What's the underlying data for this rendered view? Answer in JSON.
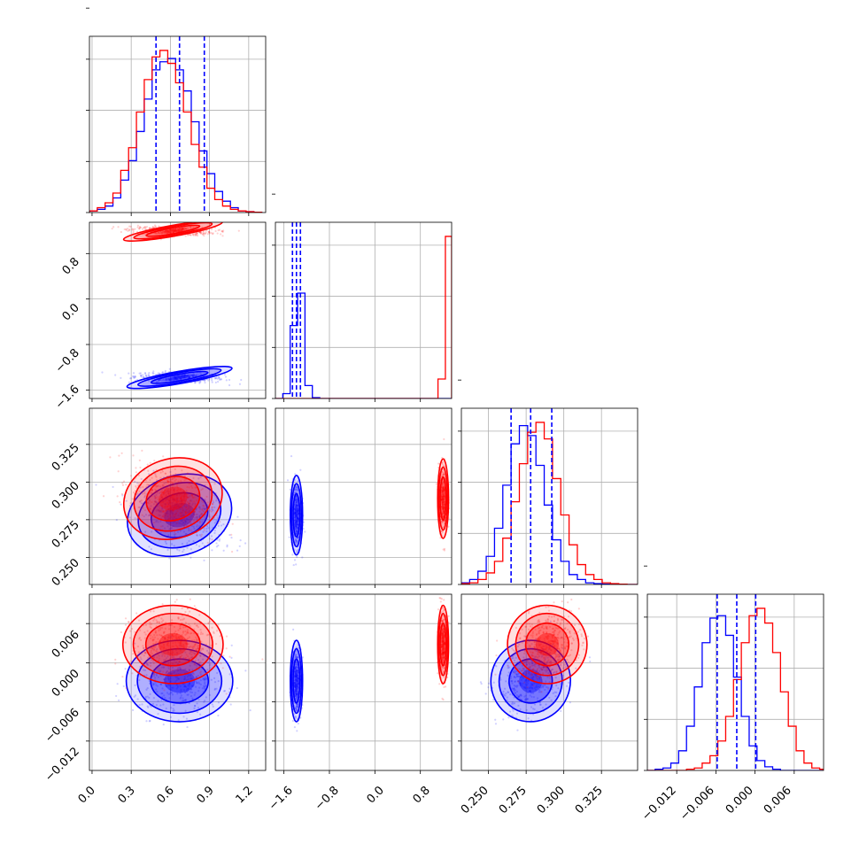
{
  "chart_data": {
    "type": "corner-plot",
    "title": "",
    "grid": true,
    "colors": {
      "series_a": "#0000ff",
      "series_b": "#ff0000",
      "quantile_line": "#0000ff"
    },
    "series": [
      {
        "name": "",
        "color": "#0000ff"
      },
      {
        "name": "",
        "color": "#ff0000"
      }
    ],
    "parameters": [
      {
        "label": "",
        "range": [
          -0.02,
          1.33
        ],
        "ticks": [
          0.0,
          0.3,
          0.6,
          0.9,
          1.2
        ],
        "tick_labels": [
          "0.0",
          "0.3",
          "0.6",
          "0.9",
          "1.2"
        ]
      },
      {
        "label": "",
        "range": [
          -1.75,
          1.35
        ],
        "ticks": [
          -1.6,
          -0.8,
          0.0,
          0.8
        ],
        "tick_labels": [
          "−1.6",
          "−0.8",
          "0.0",
          "0.8"
        ]
      },
      {
        "label": "",
        "range": [
          0.232,
          0.349
        ],
        "ticks": [
          0.25,
          0.275,
          0.3,
          0.325
        ],
        "tick_labels": [
          "0.250",
          "0.275",
          "0.300",
          "0.325"
        ]
      },
      {
        "label": "",
        "range": [
          -0.0165,
          0.0105
        ],
        "ticks": [
          -0.012,
          -0.006,
          0.0,
          0.006
        ],
        "tick_labels": [
          "−0.012",
          "−0.006",
          "0.000",
          "0.006"
        ]
      }
    ],
    "quantiles": [
      [
        0.49,
        0.67,
        0.86
      ],
      [
        -1.45,
        -1.38,
        -1.31
      ],
      [
        0.265,
        0.278,
        0.292
      ],
      [
        -0.0058,
        -0.0028,
        0.0001
      ]
    ],
    "histograms": [
      {
        "bins": [
          -0.02,
          0.04,
          0.1,
          0.16,
          0.22,
          0.28,
          0.34,
          0.4,
          0.46,
          0.52,
          0.58,
          0.64,
          0.7,
          0.76,
          0.82,
          0.88,
          0.94,
          1.0,
          1.06,
          1.12,
          1.18,
          1.24,
          1.3
        ],
        "series": [
          [
            1,
            2,
            4,
            9,
            20,
            32,
            50,
            70,
            88,
            93,
            95,
            88,
            75,
            56,
            38,
            24,
            13,
            7,
            3,
            1,
            0.5,
            0.2
          ],
          [
            1,
            3,
            6,
            12,
            26,
            40,
            62,
            82,
            96,
            100,
            92,
            80,
            62,
            42,
            28,
            15,
            8,
            4,
            2,
            1,
            0.5,
            0.2
          ]
        ]
      },
      {
        "bins": [
          -1.75,
          -1.62,
          -1.49,
          -1.36,
          -1.23,
          -1.1,
          -0.97,
          -0.84,
          -0.71,
          -0.58,
          -0.45,
          -0.32,
          -0.19,
          -0.06,
          0.07,
          0.2,
          0.33,
          0.46,
          0.59,
          0.72,
          0.85,
          0.98,
          1.11,
          1.24,
          1.35
        ],
        "series": [
          [
            0,
            3,
            45,
            65,
            8,
            0.5,
            0,
            0,
            0,
            0,
            0,
            0,
            0,
            0,
            0,
            0,
            0,
            0,
            0,
            0,
            0,
            0,
            0,
            0
          ],
          [
            0,
            0,
            0,
            0,
            0,
            0,
            0,
            0,
            0,
            0,
            0,
            0,
            0,
            0,
            0,
            0,
            0,
            0,
            0,
            0,
            0,
            0,
            12,
            100
          ]
        ]
      },
      {
        "bins": [
          0.232,
          0.2375,
          0.243,
          0.2485,
          0.254,
          0.2595,
          0.265,
          0.2705,
          0.276,
          0.2815,
          0.287,
          0.2925,
          0.298,
          0.3035,
          0.309,
          0.3145,
          0.32,
          0.3255,
          0.331,
          0.3365,
          0.342,
          0.349
        ],
        "series": [
          [
            1,
            3,
            8,
            17,
            34,
            60,
            85,
            96,
            90,
            72,
            48,
            27,
            14,
            6,
            3,
            1,
            0.5,
            0.2,
            0,
            0,
            0
          ],
          [
            0.5,
            1,
            3,
            7,
            14,
            28,
            50,
            73,
            92,
            98,
            88,
            64,
            42,
            24,
            12,
            6,
            3,
            1,
            0.5,
            0.2,
            0
          ]
        ]
      },
      {
        "bins": [
          -0.0165,
          -0.0153,
          -0.0141,
          -0.0129,
          -0.0117,
          -0.0105,
          -0.0093,
          -0.0081,
          -0.0069,
          -0.0057,
          -0.0045,
          -0.0033,
          -0.0021,
          -0.0009,
          0.0003,
          0.0015,
          0.0027,
          0.0039,
          0.0051,
          0.0063,
          0.0075,
          0.0087,
          0.0099,
          0.0105
        ],
        "series": [
          [
            0,
            0.5,
            1,
            3,
            8,
            18,
            34,
            52,
            62,
            63,
            55,
            38,
            22,
            10,
            4,
            1.5,
            0.5,
            0,
            0,
            0,
            0,
            0,
            0
          ],
          [
            0,
            0,
            0,
            0,
            0,
            0.5,
            1,
            3,
            6,
            12,
            22,
            37,
            52,
            63,
            66,
            60,
            48,
            32,
            18,
            8,
            3,
            1,
            0.5
          ]
        ]
      }
    ],
    "distributions": [
      {
        "mean": [
          0.67,
          -1.38,
          0.278,
          -0.0028
        ],
        "sd": [
          0.17,
          0.045,
          0.011,
          0.0026
        ]
      },
      {
        "mean": [
          0.62,
          1.2,
          0.289,
          0.0028
        ],
        "sd": [
          0.16,
          0.04,
          0.011,
          0.0025
        ]
      }
    ]
  }
}
